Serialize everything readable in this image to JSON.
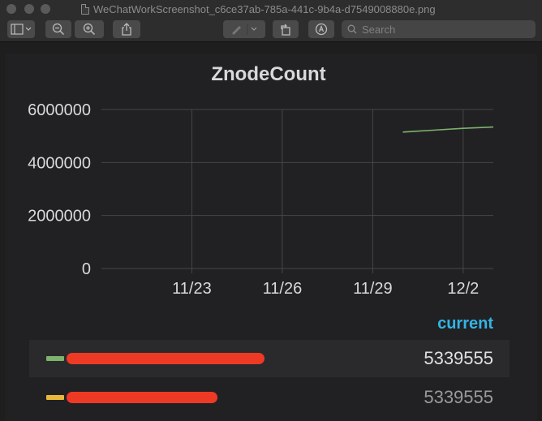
{
  "window": {
    "title": "WeChatWorkScreenshot_c6ce37ab-785a-441c-9b4a-d7549008880e.png"
  },
  "toolbar": {
    "search_placeholder": "Search"
  },
  "colors": {
    "series_current": "#7eb26d",
    "series_other": "#eab839",
    "legend_header": "#33b5e5",
    "redaction": "#ee3a24"
  },
  "chart_data": {
    "type": "line",
    "title": "ZnodeCount",
    "xlabel": "",
    "ylabel": "",
    "yticks": [
      "0",
      "2000000",
      "4000000",
      "6000000"
    ],
    "xticks": [
      "11/23",
      "11/26",
      "11/29",
      "12/2"
    ],
    "ylim": [
      0,
      6000000
    ],
    "x_domain_days": [
      "11/20",
      "12/3"
    ],
    "grid": true,
    "series": [
      {
        "color": "#7eb26d",
        "x": [
          "11/30",
          "12/1",
          "12/2",
          "12/3"
        ],
        "values": [
          5150000,
          5220000,
          5290000,
          5339555
        ]
      }
    ]
  },
  "legend": {
    "header": "current",
    "rows": [
      {
        "value": "5339555",
        "color": "#7eb26d"
      },
      {
        "value": "5339555",
        "color": "#eab839"
      }
    ]
  }
}
